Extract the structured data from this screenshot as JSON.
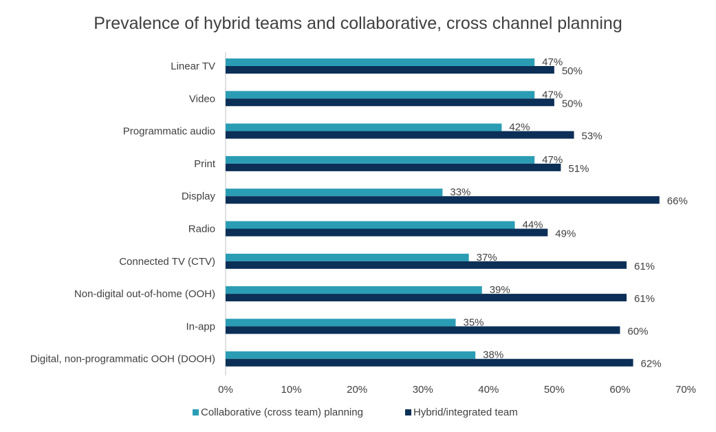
{
  "chart_data": {
    "type": "bar",
    "orientation": "horizontal",
    "title": "Prevalence of hybrid teams and collaborative, cross channel planning",
    "categories": [
      "Linear TV",
      "Video",
      "Programmatic audio",
      "Print",
      "Display",
      "Radio",
      "Connected TV (CTV)",
      "Non-digital out-of-home (OOH)",
      "In-app",
      "Digital, non-programmatic OOH (DOOH)"
    ],
    "series": [
      {
        "name": "Collaborative (cross team) planning",
        "color": "#2a9db5",
        "values": [
          47,
          47,
          42,
          47,
          33,
          44,
          37,
          39,
          35,
          38
        ],
        "labels": [
          "47%",
          "47%",
          "42%",
          "47%",
          "33%",
          "44%",
          "37%",
          "39%",
          "35%",
          "38%"
        ]
      },
      {
        "name": "Hybrid/integrated team",
        "color": "#0b2f57",
        "values": [
          50,
          50,
          53,
          51,
          66,
          49,
          61,
          61,
          60,
          62
        ],
        "labels": [
          "50%",
          "50%",
          "53%",
          "51%",
          "66%",
          "49%",
          "61%",
          "61%",
          "60%",
          "62%"
        ]
      }
    ],
    "xlim": [
      0,
      70
    ],
    "ticks": [
      0,
      10,
      20,
      30,
      40,
      50,
      60,
      70
    ],
    "tick_labels": [
      "0%",
      "10%",
      "20%",
      "30%",
      "40%",
      "50%",
      "60%",
      "70%"
    ],
    "legend_position": "bottom",
    "grid": false
  }
}
